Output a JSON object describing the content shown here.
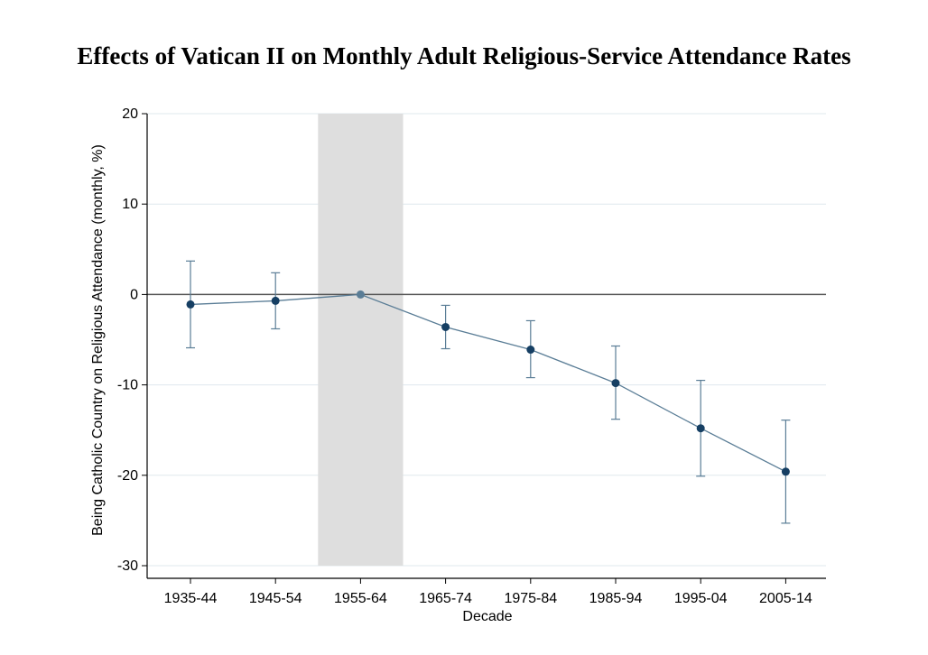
{
  "chart_data": {
    "type": "line",
    "title": "Effects of Vatican II on Monthly Adult Religious-Service Attendance Rates",
    "xlabel": "Decade",
    "ylabel": "Being Catholic Country on Religious Attendance (monthly, %)",
    "categories": [
      "1935-44",
      "1945-54",
      "1955-64",
      "1965-74",
      "1975-84",
      "1985-94",
      "1995-04",
      "2005-14"
    ],
    "series": [
      {
        "values": [
          -1.1,
          -0.7,
          0.0,
          -3.6,
          -6.1,
          -9.8,
          -14.8,
          -19.6
        ],
        "ci_lower": [
          -5.9,
          -3.8,
          0.0,
          -6.0,
          -9.2,
          -13.8,
          -20.1,
          -25.3
        ],
        "ci_upper": [
          3.7,
          2.4,
          0.0,
          -1.2,
          -2.9,
          -5.7,
          -9.5,
          -13.9
        ]
      }
    ],
    "ylim": [
      -30,
      20
    ],
    "yticks": [
      -30,
      -20,
      -10,
      0,
      10,
      20
    ],
    "ytick_labels": [
      "-30",
      "-20",
      "-10",
      "0",
      "10",
      "20"
    ],
    "reference_line_y": 0,
    "shaded_region": {
      "from": "1945-54",
      "to": "1955-64",
      "color": "#dedede"
    },
    "grid": true,
    "colors": {
      "line": "#5a7d96",
      "marker": "#163f63",
      "reference": "#555555",
      "grid": "#dfe8ee",
      "shade": "#dedede"
    }
  }
}
